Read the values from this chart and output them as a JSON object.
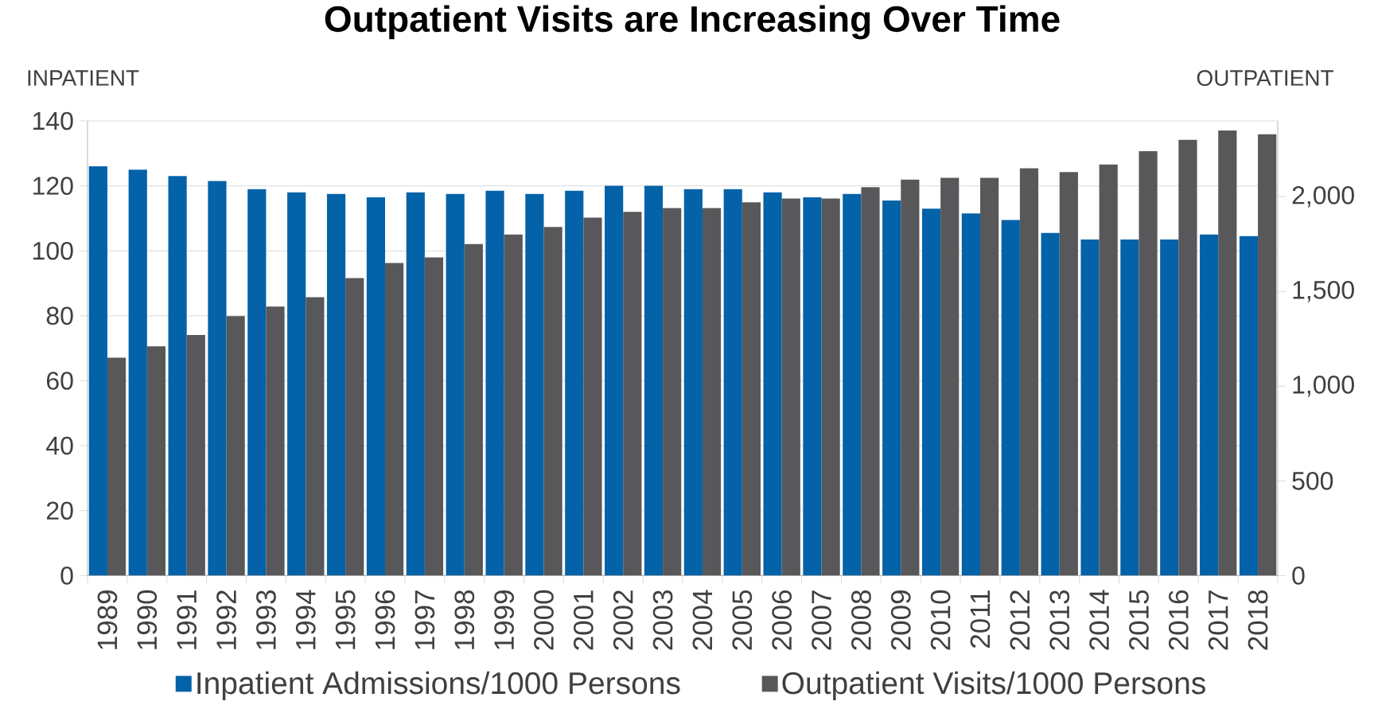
{
  "chart_data": {
    "type": "bar",
    "title": "Outpatient Visits are Increasing Over Time",
    "ylabel": "INPATIENT",
    "y2label": "OUTPATIENT",
    "categories": [
      "1989",
      "1990",
      "1991",
      "1992",
      "1993",
      "1994",
      "1995",
      "1996",
      "1997",
      "1998",
      "1999",
      "2000",
      "2001",
      "2002",
      "2003",
      "2004",
      "2005",
      "2006",
      "2007",
      "2008",
      "2009",
      "2010",
      "2011",
      "2012",
      "2013",
      "2014",
      "2015",
      "2016",
      "2017",
      "2018"
    ],
    "series": [
      {
        "name": "Inpatient Admissions/1000 Persons",
        "color": "#0462a8",
        "values": [
          126,
          125,
          123,
          121.5,
          119,
          118,
          117.5,
          116.5,
          118,
          117.5,
          118.5,
          117.5,
          118.5,
          120,
          120,
          119,
          119,
          118,
          116.5,
          117.5,
          115.5,
          113,
          111.5,
          109.5,
          105.5,
          103.5,
          103.5,
          103.5,
          105,
          104.5
        ]
      },
      {
        "name": "Outpatient Visits/1000 Persons",
        "color": "#58585a",
        "axis": "y2",
        "values": [
          1150,
          1210,
          1270,
          1370,
          1420,
          1470,
          1570,
          1650,
          1680,
          1750,
          1800,
          1840,
          1890,
          1920,
          1940,
          1940,
          1970,
          1990,
          1990,
          2050,
          2090,
          2100,
          2100,
          2150,
          2130,
          2170,
          2240,
          2300,
          2350,
          2330
        ]
      }
    ],
    "ylim": [
      0,
      140
    ],
    "yticks": [
      0,
      20,
      40,
      60,
      80,
      100,
      120,
      140
    ],
    "y2lim": [
      0,
      2400
    ],
    "y2ticks": [
      0,
      500,
      {
        "value": 1000,
        "label": "1,000"
      },
      {
        "value": 1500,
        "label": "1,500"
      },
      {
        "value": 2000,
        "label": "2,000"
      }
    ],
    "grid": "y",
    "legend": "bottom"
  }
}
